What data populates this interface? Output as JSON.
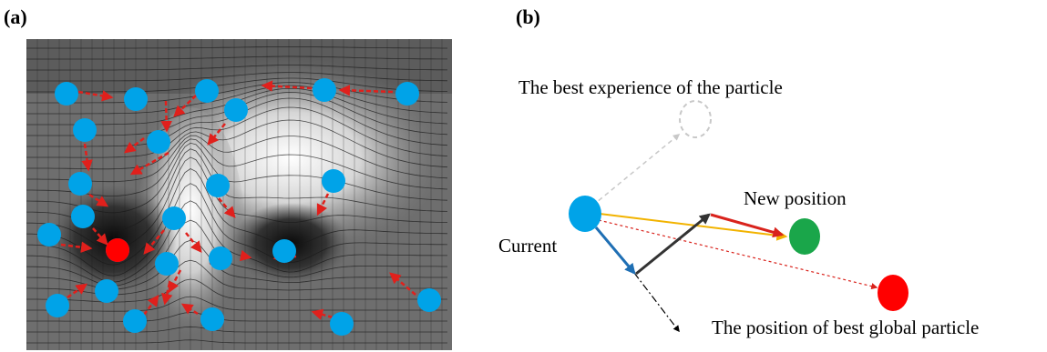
{
  "panels": {
    "a": {
      "label": "(a)"
    },
    "b": {
      "label": "(b)",
      "text_best_experience": "The best experience of the particle",
      "text_new_position": "New position",
      "text_current": "Current",
      "text_best_global": "The position of best global particle"
    }
  },
  "colors": {
    "particle": "#00a3e8",
    "best_global": "#ff0000",
    "new_position": "#1aa64a",
    "swarm_arrow": "#e0201c",
    "inertia_arrow": "#1f6fb4",
    "experience_ghost": "#c8c8c8",
    "social_arrow": "#333333",
    "cognitive_line": "#f2b300",
    "global_line": "#d9231c"
  },
  "icons": [
    "particle-circle",
    "dashed-arrow",
    "solid-arrow",
    "dashed-circle"
  ]
}
